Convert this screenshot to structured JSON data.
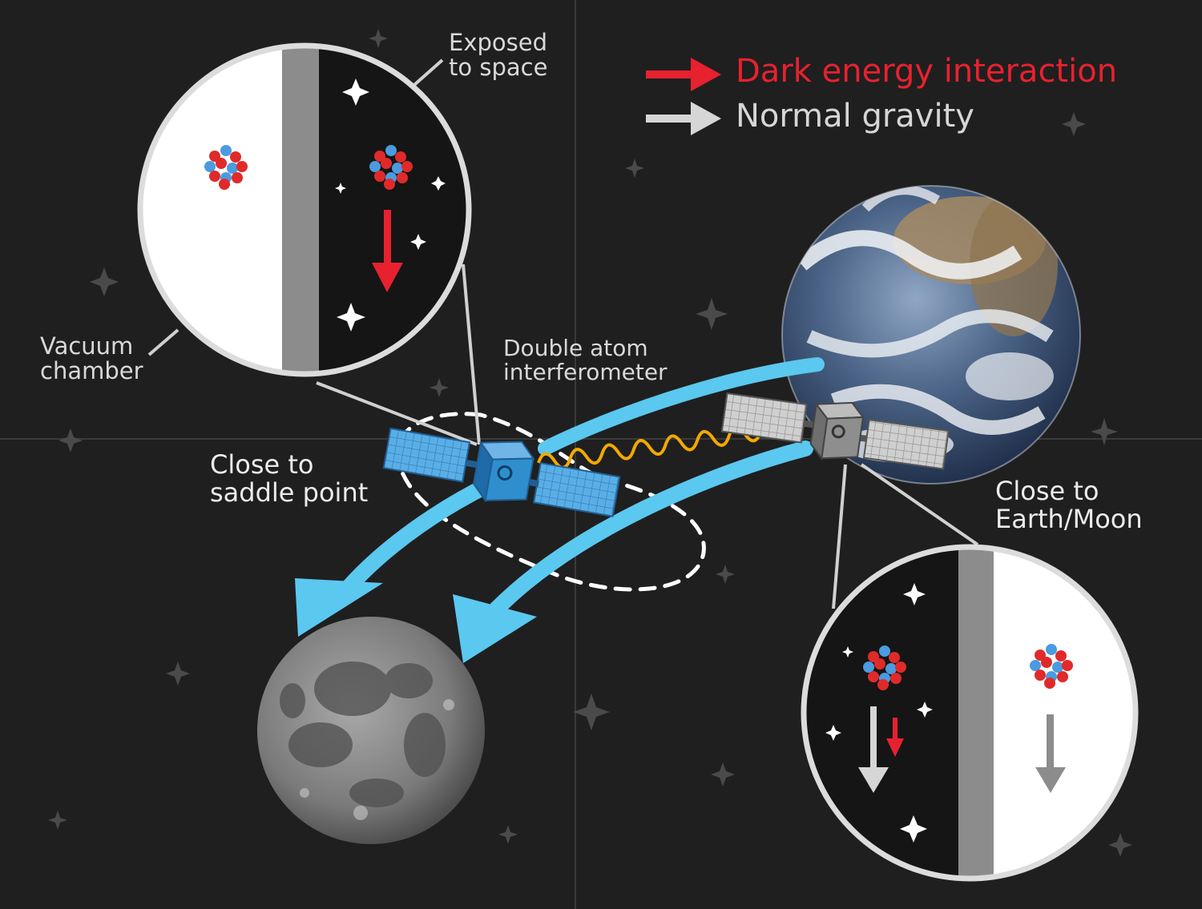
{
  "colors": {
    "background": "#1f1f1f",
    "dark_energy": "#e8212f",
    "normal_gravity": "#d6d6d6",
    "flow_arrows": "#5bc8f0",
    "laser": "#f2a900",
    "satellite_left": "#2f8fce",
    "satellite_right": "#8e8e8e"
  },
  "legend": {
    "dark_energy": "Dark energy interaction",
    "normal_gravity": "Normal gravity"
  },
  "labels": {
    "exposed": {
      "line1": "Exposed",
      "line2": "to space"
    },
    "vacuum": {
      "line1": "Vacuum",
      "line2": "chamber"
    },
    "interferometer": {
      "line1": "Double atom",
      "line2": "interferometer"
    },
    "saddle": {
      "line1": "Close to",
      "line2": "saddle point"
    },
    "earthmoon": {
      "line1": "Close to",
      "line2": "Earth/Moon"
    }
  },
  "icons": [
    "star-icon",
    "atom-icon",
    "satellite-icon",
    "earth-icon",
    "moon-icon",
    "arrow-icon"
  ]
}
